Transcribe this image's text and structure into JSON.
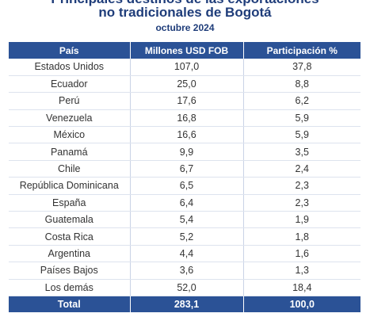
{
  "header": {
    "title_line1": "Principales destinos de las exportaciones",
    "title_line2": "no tradicionales de Bogotá",
    "subtitle": "octubre 2024"
  },
  "table": {
    "columns": [
      "País",
      "Millones USD FOB",
      "Participación %"
    ],
    "rows": [
      {
        "pais": "Estados Unidos",
        "millones": "107,0",
        "participacion": "37,8"
      },
      {
        "pais": "Ecuador",
        "millones": "25,0",
        "participacion": "8,8"
      },
      {
        "pais": "Perú",
        "millones": "17,6",
        "participacion": "6,2"
      },
      {
        "pais": "Venezuela",
        "millones": "16,8",
        "participacion": "5,9"
      },
      {
        "pais": "México",
        "millones": "16,6",
        "participacion": "5,9"
      },
      {
        "pais": "Panamá",
        "millones": "9,9",
        "participacion": "3,5"
      },
      {
        "pais": "Chile",
        "millones": "6,7",
        "participacion": "2,4"
      },
      {
        "pais": "República Dominicana",
        "millones": "6,5",
        "participacion": "2,3"
      },
      {
        "pais": "España",
        "millones": "6,4",
        "participacion": "2,3"
      },
      {
        "pais": "Guatemala",
        "millones": "5,4",
        "participacion": "1,9"
      },
      {
        "pais": "Costa Rica",
        "millones": "5,2",
        "participacion": "1,8"
      },
      {
        "pais": "Argentina",
        "millones": "4,4",
        "participacion": "1,6"
      },
      {
        "pais": "Países Bajos",
        "millones": "3,6",
        "participacion": "1,3"
      },
      {
        "pais": "Los demás",
        "millones": "52,0",
        "participacion": "18,4"
      }
    ],
    "total": {
      "label": "Total",
      "millones": "283,1",
      "participacion": "100,0"
    }
  }
}
